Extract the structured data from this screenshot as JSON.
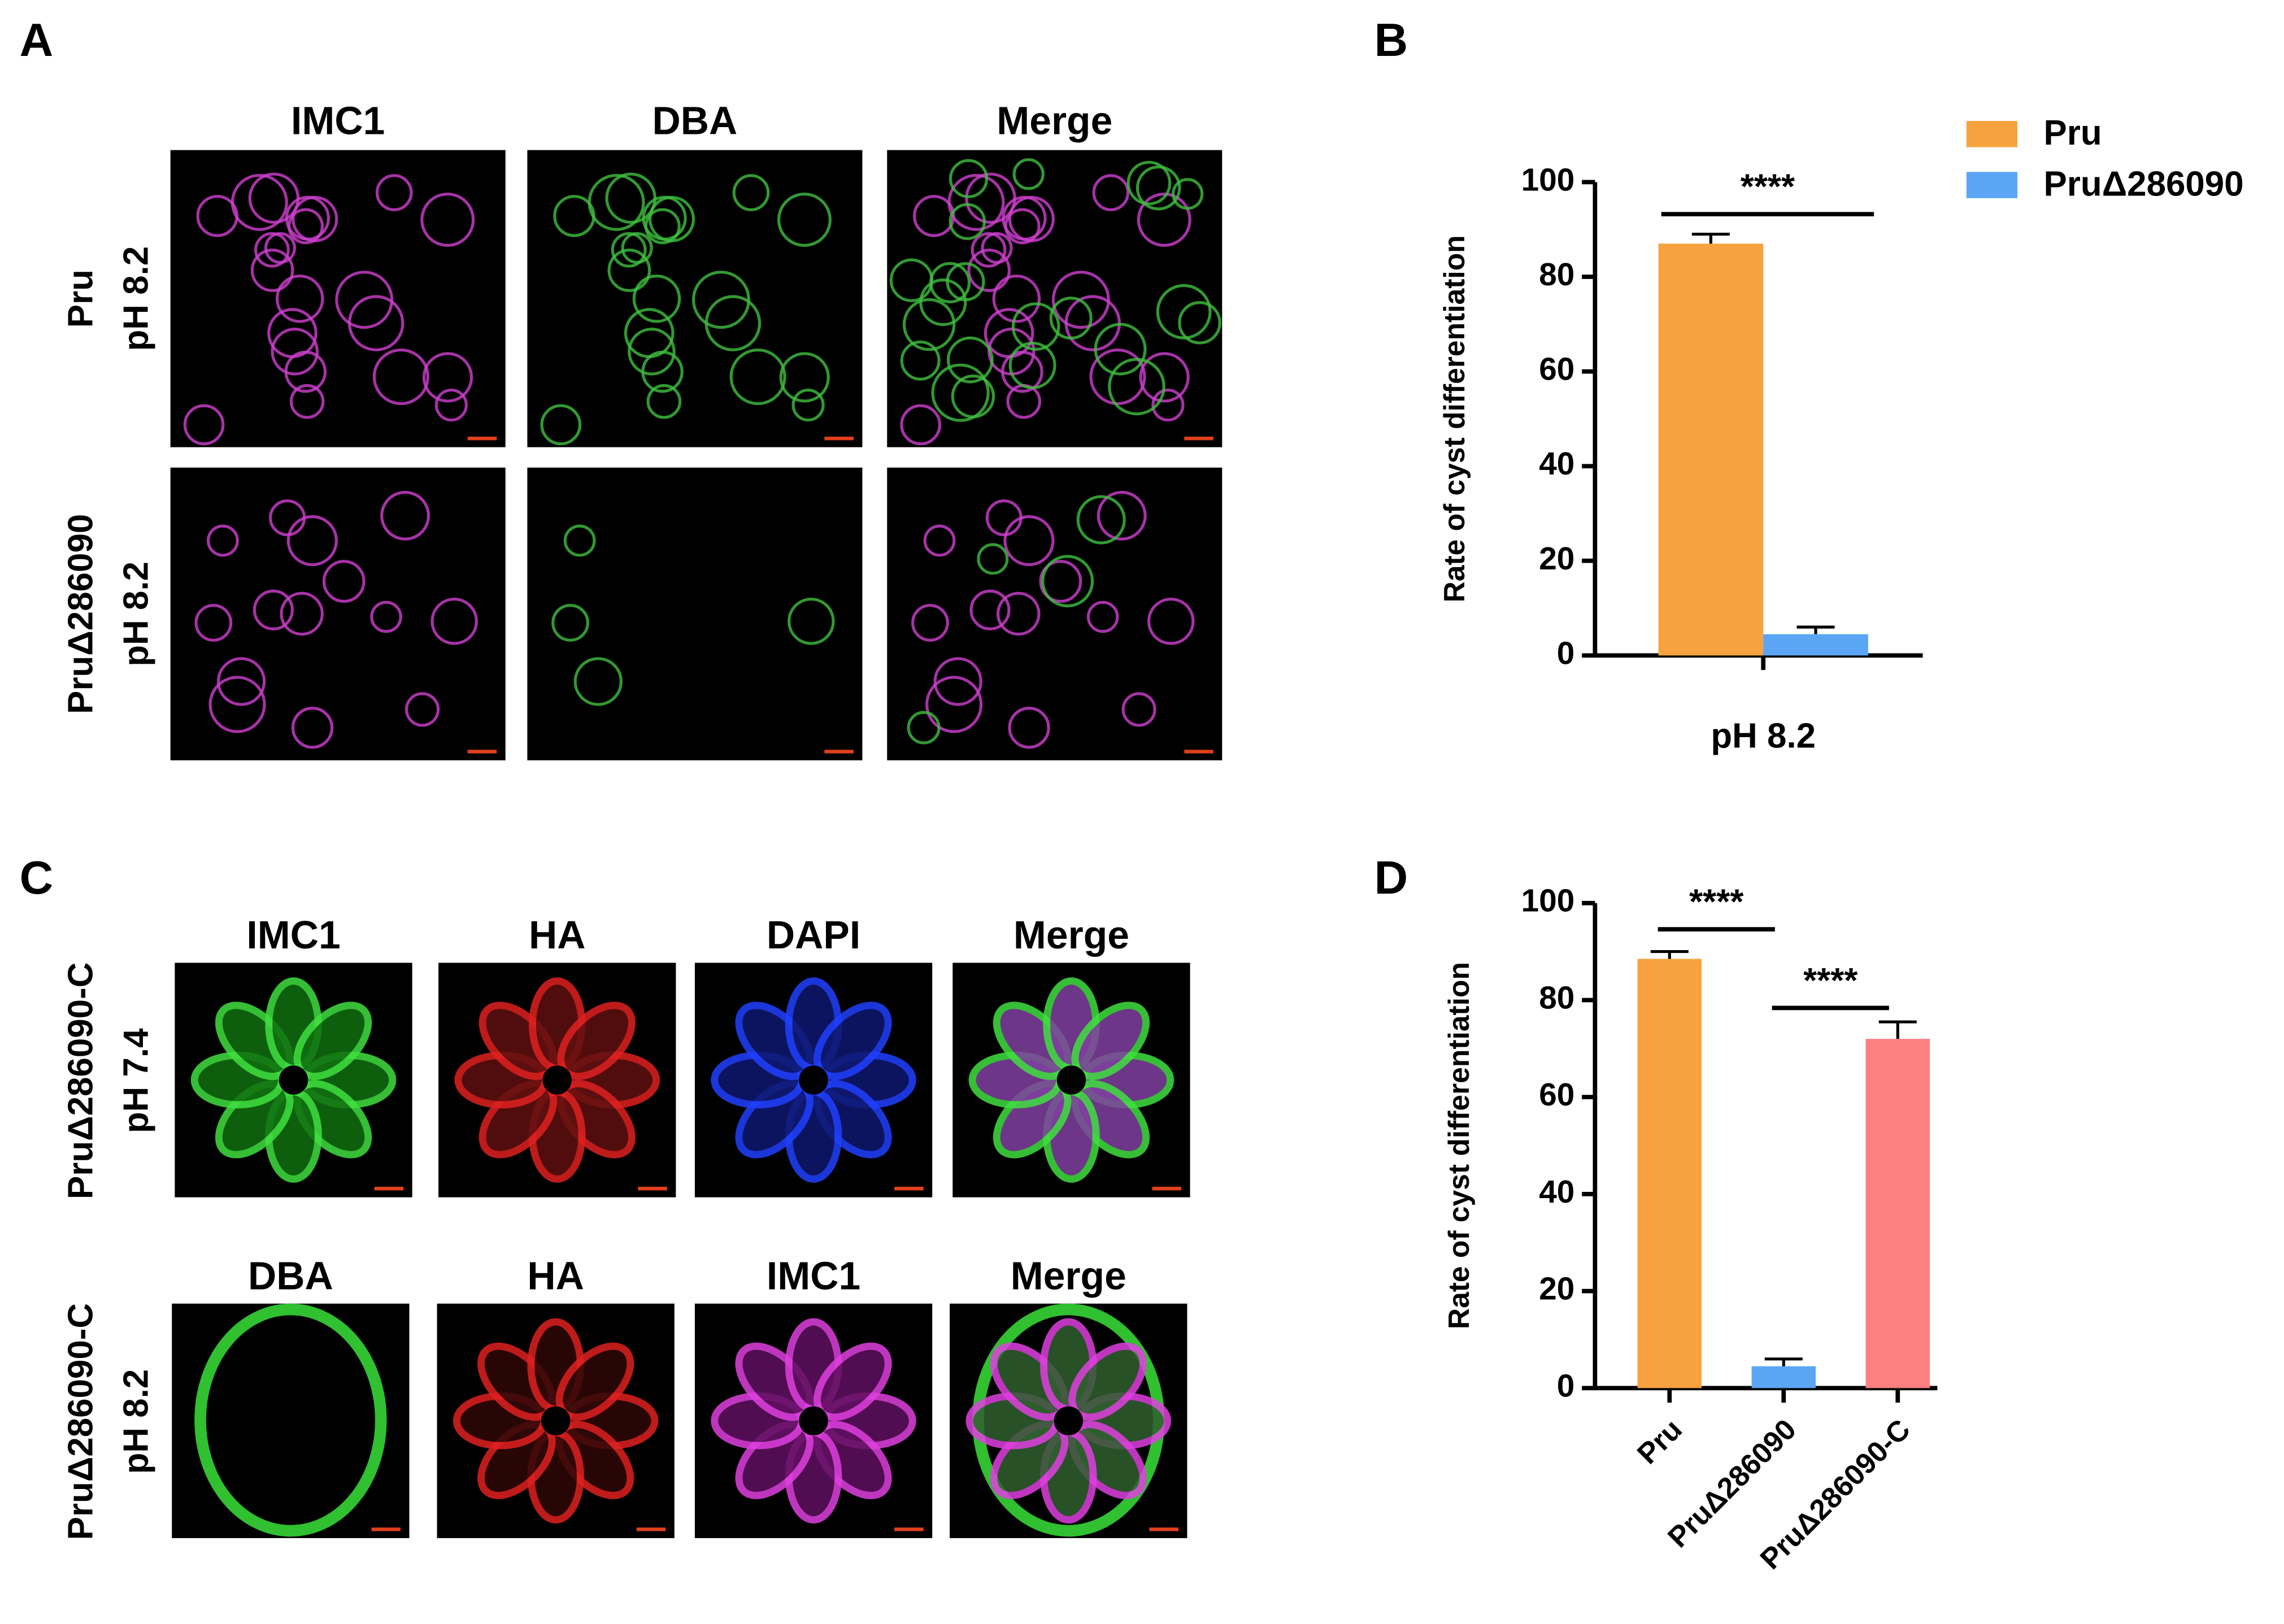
{
  "panel_letters": [
    "A",
    "B",
    "C",
    "D"
  ],
  "panel_a": {
    "columns": [
      "IMC1",
      "DBA",
      "Merge"
    ],
    "rows": [
      [
        "Pru",
        "pH 8.2"
      ],
      [
        "PruΔ286090",
        "pH 8.2"
      ]
    ]
  },
  "panel_c": {
    "rows": [
      {
        "label": [
          "PruΔ286090-C",
          "pH 7.4"
        ],
        "columns": [
          "IMC1",
          "HA",
          "DAPI",
          "Merge"
        ]
      },
      {
        "label": [
          "PruΔ286090-C",
          "pH 8.2"
        ],
        "columns": [
          "DBA",
          "HA",
          "IMC1",
          "Merge"
        ]
      }
    ]
  },
  "chart_data": [
    {
      "type": "bar",
      "y_label": "Rate of cyst differentiation",
      "categories": [
        "pH 8.2"
      ],
      "series": [
        {
          "name": "Pru",
          "color": "#f7a23f",
          "values": [
            87
          ],
          "errors": [
            2
          ]
        },
        {
          "name": "PruΔ286090",
          "color": "#5aa6f5",
          "values": [
            4.5
          ],
          "errors": [
            1.5
          ]
        }
      ],
      "ylim": [
        0,
        100
      ],
      "yticks": [
        0,
        20,
        40,
        60,
        80,
        100
      ],
      "annotations": [
        "****"
      ]
    },
    {
      "type": "bar",
      "y_label": "Rate of cyst differentiation",
      "categories": [
        "Pru",
        "PruΔ286090",
        "PruΔ286090-C"
      ],
      "values": [
        88.5,
        4.5,
        72
      ],
      "errors": [
        1.5,
        1.5,
        3.5
      ],
      "colors": [
        "#f7a23f",
        "#5aa6f5",
        "#fb8080"
      ],
      "ylim": [
        0,
        100
      ],
      "yticks": [
        0,
        20,
        40,
        60,
        80,
        100
      ],
      "annotations": [
        "****",
        "****"
      ]
    }
  ]
}
